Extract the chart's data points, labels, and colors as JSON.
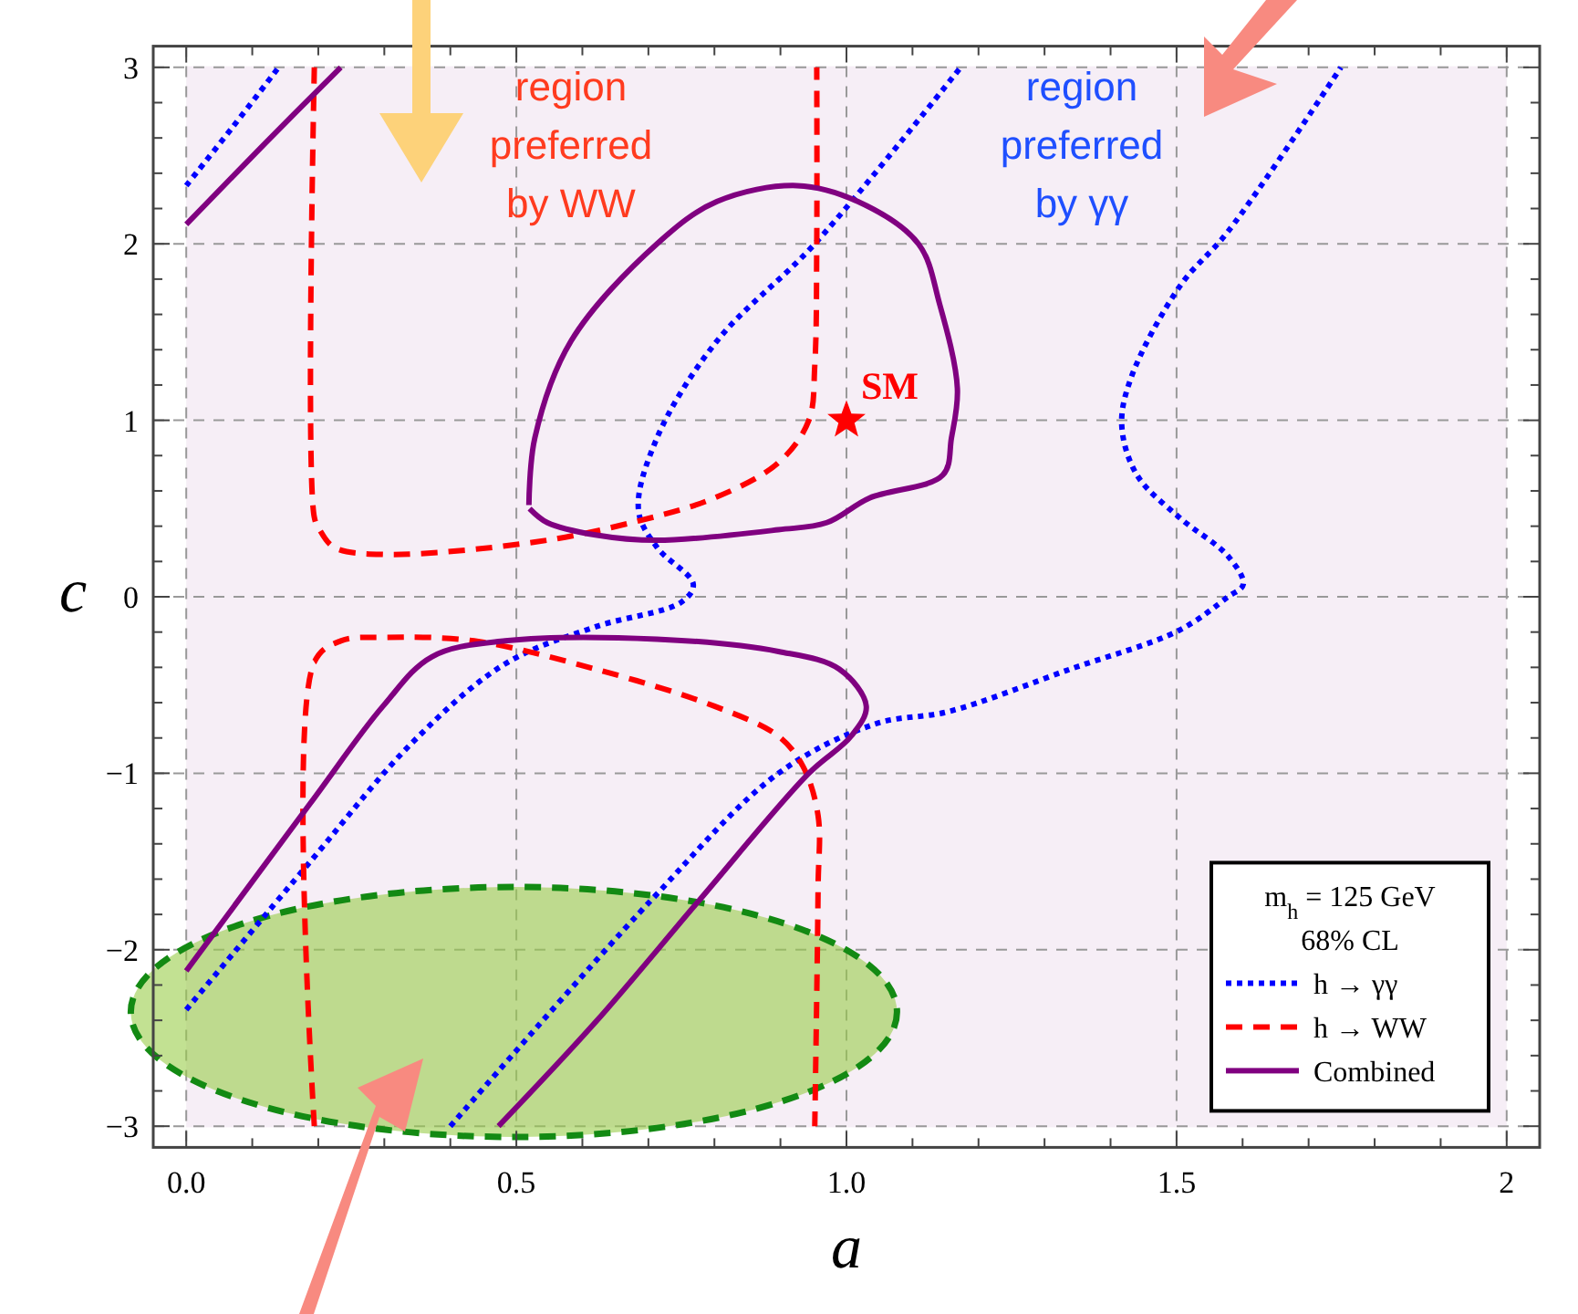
{
  "chart_data": {
    "type": "line",
    "xlabel": "a",
    "ylabel": "c",
    "legend_title": "m$_{h}$ = 125 GeV\n68% CL",
    "legend": "bottom right",
    "grid": true,
    "xlim": [
      -0.05,
      2.05
    ],
    "ylim": [
      -3.12,
      3.12
    ],
    "xticks": [
      {
        "value": 0,
        "label": "0.0"
      },
      {
        "value": 0.1,
        "label": null
      },
      {
        "value": 0.2,
        "label": null
      },
      {
        "value": 0.3,
        "label": null
      },
      {
        "value": 0.4,
        "label": null
      },
      0.5,
      {
        "value": 0.6,
        "label": null
      },
      {
        "value": 0.7,
        "label": null
      },
      {
        "value": 0.8,
        "label": null
      },
      {
        "value": 0.9,
        "label": null
      },
      {
        "value": 1,
        "label": "1.0"
      },
      {
        "value": 1.1,
        "label": null
      },
      {
        "value": 1.2,
        "label": null
      },
      {
        "value": 1.3,
        "label": null
      },
      {
        "value": 1.4,
        "label": null
      },
      1.5,
      {
        "value": 1.6,
        "label": null
      },
      {
        "value": 1.7,
        "label": null
      },
      {
        "value": 1.8,
        "label": null
      },
      {
        "value": 1.9,
        "label": null
      },
      2
    ],
    "yticks": [
      {
        "value": -3,
        "label": "−3"
      },
      {
        "value": -2.8,
        "label": null
      },
      {
        "value": -2.6,
        "label": null
      },
      {
        "value": -2.4,
        "label": null
      },
      {
        "value": -2.2,
        "label": null
      },
      {
        "value": -2,
        "label": "−2"
      },
      {
        "value": -1.8,
        "label": null
      },
      {
        "value": -1.6,
        "label": null
      },
      {
        "value": -1.4,
        "label": null
      },
      {
        "value": -1.2,
        "label": null
      },
      {
        "value": -1,
        "label": "−1"
      },
      {
        "value": -0.8,
        "label": null
      },
      {
        "value": -0.6,
        "label": null
      },
      {
        "value": -0.4,
        "label": null
      },
      {
        "value": -0.2,
        "label": null
      },
      0,
      {
        "value": 0.2,
        "label": null
      },
      {
        "value": 0.4,
        "label": null
      },
      {
        "value": 0.6,
        "label": null
      },
      {
        "value": 0.8,
        "label": null
      },
      1,
      {
        "value": 1.2,
        "label": null
      },
      {
        "value": 1.4,
        "label": null
      },
      {
        "value": 1.6,
        "label": null
      },
      {
        "value": 1.8,
        "label": null
      },
      2,
      {
        "value": 2.2,
        "label": null
      },
      {
        "value": 2.4,
        "label": null
      },
      {
        "value": 2.6,
        "label": null
      },
      {
        "value": 2.8,
        "label": null
      },
      3
    ],
    "bands": [
      {
        "axis": "x",
        "from": 0,
        "to": 2,
        "color": "#f6eef6"
      }
    ],
    "annotations": [
      "region preferred by WW",
      "region preferred by γγ"
    ],
    "series": [
      {
        "name": "h → γγ",
        "color": "#0000ff",
        "line_style": "dotted",
        "x": [
          0,
          0.07,
          0.14
        ],
        "values": [
          2.33,
          2.66,
          3
        ]
      },
      {
        "color": "#0000ff",
        "line_style": "dotted",
        "x": [
          0,
          0.188,
          0.344,
          0.483,
          0.62,
          0.75,
          0.768,
          0.713,
          0.685,
          0.713,
          0.804,
          0.952,
          1.173
        ],
        "values": [
          -2.34,
          -1.5,
          -0.82,
          -0.38,
          -0.17,
          -0.03,
          0.07,
          0.28,
          0.49,
          0.9,
          1.45,
          2.0,
          3.0
        ]
      },
      {
        "color": "#0000ff",
        "line_style": "dotted",
        "x": [
          0.4,
          0.704,
          0.897,
          1.044,
          1.155,
          1.339,
          1.504,
          1.578,
          1.601,
          1.578,
          1.504,
          1.44,
          1.417,
          1.431,
          1.505,
          1.578,
          1.749
        ],
        "values": [
          -3,
          -1.72,
          -1.0,
          -0.72,
          -0.65,
          -0.41,
          -0.19,
          0,
          0.07,
          0.23,
          0.45,
          0.69,
          0.97,
          1.24,
          1.76,
          2.07,
          3.0
        ]
      },
      {
        "name": "h → WW",
        "color": "#ff0000",
        "line_style": "dashed",
        "x": [
          0.194,
          0.194,
          0.202,
          0.224,
          0.298,
          0.528,
          0.685,
          0.8,
          0.897,
          0.943,
          0.952,
          0.955,
          0.955
        ],
        "values": [
          3,
          0.45,
          0.38,
          0.28,
          0.24,
          0.31,
          0.43,
          0.56,
          0.76,
          1.0,
          1.31,
          2.0,
          3
        ]
      },
      {
        "color": "#ff0000",
        "line_style": "dashed",
        "x": [
          0.194,
          0.194,
          0.234,
          0.298,
          0.436,
          0.62,
          0.8,
          0.897,
          0.934,
          0.957,
          0.957,
          0.952
        ],
        "values": [
          -3,
          -0.37,
          -0.25,
          -0.23,
          -0.25,
          -0.41,
          -0.62,
          -0.79,
          -0.96,
          -1.24,
          -1.65,
          -3
        ]
      },
      {
        "name": "Combined",
        "color": "#800080",
        "line_style": "solid",
        "x": [
          0,
          0.117,
          0.234
        ],
        "values": [
          2.11,
          2.56,
          3.0
        ]
      },
      {
        "color": "#800080",
        "line_style": "solid",
        "x": [
          0.519,
          0.528,
          0.583,
          0.713,
          0.804,
          0.925,
          1.017,
          1.109,
          1.141,
          1.168,
          1.159,
          1.146,
          1.035,
          0.97,
          0.897,
          0.713,
          0.62,
          0.547,
          0.52
        ],
        "values": [
          0.52,
          0.9,
          1.45,
          2.0,
          2.24,
          2.33,
          2.24,
          2.0,
          1.66,
          1.18,
          0.9,
          0.69,
          0.56,
          0.42,
          0.38,
          0.32,
          0.35,
          0.42,
          0.5
        ]
      },
      {
        "color": "#800080",
        "line_style": "solid",
        "x": [
          0,
          0.188,
          0.298,
          0.372,
          0.483,
          0.713,
          0.897,
          0.989,
          1.03,
          1.007,
          0.943,
          0.777,
          0.62,
          0.473
        ],
        "values": [
          -2.12,
          -1.17,
          -0.62,
          -0.34,
          -0.25,
          -0.24,
          -0.31,
          -0.41,
          -0.62,
          -0.79,
          -1.0,
          -1.72,
          -2.41,
          -3.0
        ]
      },
      {
        "name": "SM",
        "type": "scatter",
        "marker": "star",
        "color": "#ff0000",
        "x": [
          1
        ],
        "values": [
          1
        ]
      }
    ]
  }
}
